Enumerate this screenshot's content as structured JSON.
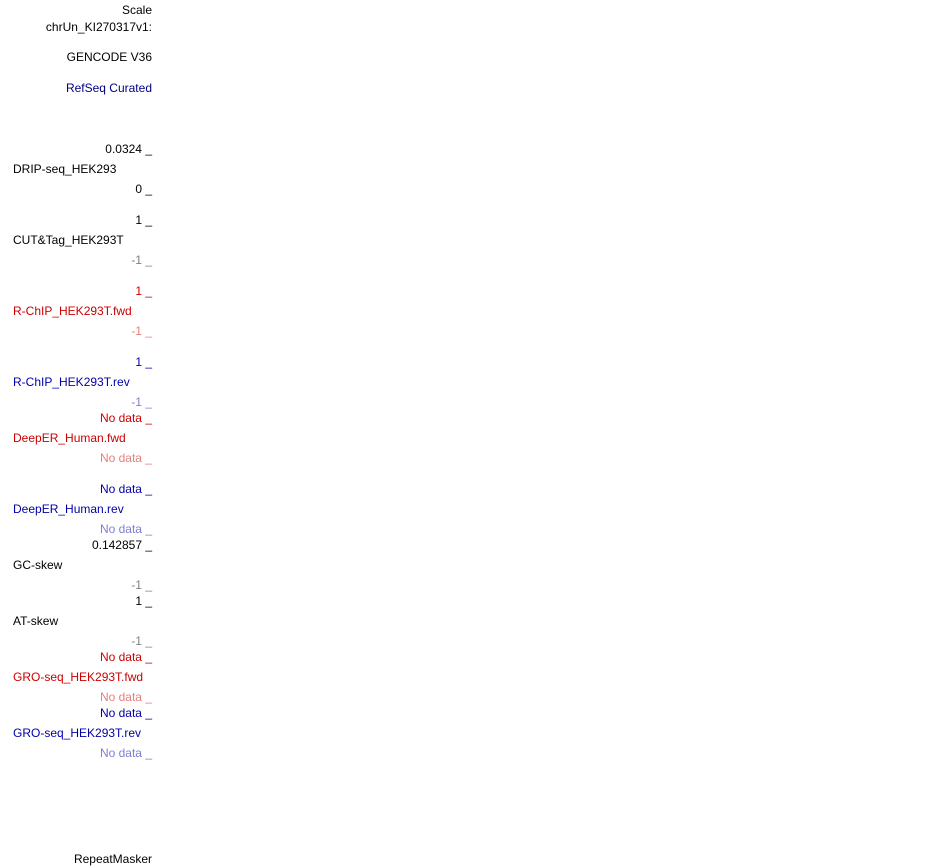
{
  "header": {
    "scale": "Scale",
    "chrom": "chrUn_KI270317v1:"
  },
  "tracks": [
    {
      "name": "GENCODE V36"
    },
    {
      "name": "RefSeq Curated"
    },
    {
      "max": "0.0324 _",
      "name": "DRIP-seq_HEK293",
      "min": "0 _"
    },
    {
      "max": "1 _",
      "name": "CUT&Tag_HEK293T",
      "min": "-1 _"
    },
    {
      "max": "1 _",
      "name": "R-ChIP_HEK293T.fwd",
      "min": "-1 _"
    },
    {
      "max": "1 _",
      "name": "R-ChIP_HEK293T.rev",
      "min": "-1 _"
    },
    {
      "max": "No data _",
      "name": "DeepER_Human.fwd",
      "min": "No data _"
    },
    {
      "max": "No data _",
      "name": "DeepER_Human.rev",
      "min": "No data _"
    },
    {
      "max": "0.142857 _",
      "name": "GC-skew",
      "min": "-1 _"
    },
    {
      "max": "1 _",
      "name": "AT-skew",
      "min": "-1 _"
    },
    {
      "max": "No data _",
      "name": "GRO-seq_HEK293T.fwd",
      "min": "No data _"
    },
    {
      "max": "No data _",
      "name": "GRO-seq_HEK293T.rev",
      "min": "No data _"
    },
    {
      "name": "RepeatMasker"
    }
  ]
}
